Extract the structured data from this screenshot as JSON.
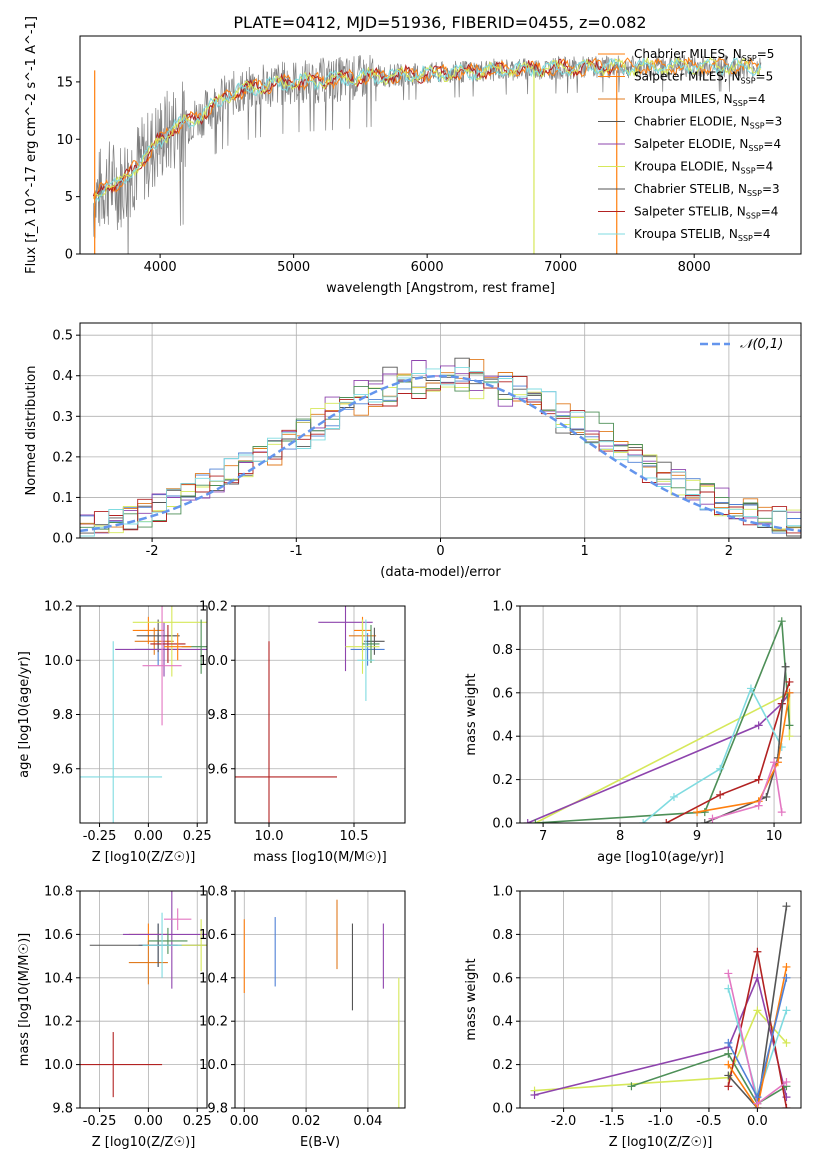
{
  "figure_title": "PLATE=0412, MJD=51936, FIBERID=0455, z=0.082",
  "colors": {
    "data": "#7f7f7f",
    "gaussian": "#6495ed",
    "grid": "#b0b0b0",
    "models": [
      "#ff7f0e",
      "#4f81d6",
      "#e07b1f",
      "#555555",
      "#8e44ad",
      "#d6e85a",
      "#4d8f57",
      "#b22222",
      "#7fdbe0",
      "#e377c2"
    ]
  },
  "chart_data": [
    {
      "type": "line",
      "title": "PLATE=0412, MJD=51936, FIBERID=0455, z=0.082",
      "xlabel": "wavelength [Angstrom, rest frame]",
      "ylabel": "Flux [f_λ 10^-17 erg cm^-2 s^-1 A^-1]",
      "xlim": [
        3400,
        8800
      ],
      "ylim": [
        0,
        19
      ],
      "xticks": [
        4000,
        5000,
        6000,
        7000,
        8000
      ],
      "yticks": [
        0,
        5,
        10,
        15
      ],
      "legend_position": "right",
      "legend": [
        {
          "name": "Chabrier MILES, N",
          "sub": "SSP",
          "suffix": "=5"
        },
        {
          "name": "Salpeter MILES, N",
          "sub": "SSP",
          "suffix": "=5"
        },
        {
          "name": "Kroupa MILES, N",
          "sub": "SSP",
          "suffix": "=4"
        },
        {
          "name": "Chabrier ELODIE, N",
          "sub": "SSP",
          "suffix": "=3"
        },
        {
          "name": "Salpeter ELODIE, N",
          "sub": "SSP",
          "suffix": "=4"
        },
        {
          "name": "Kroupa ELODIE, N",
          "sub": "SSP",
          "suffix": "=4"
        },
        {
          "name": "Chabrier STELIB, N",
          "sub": "SSP",
          "suffix": "=3"
        },
        {
          "name": "Salpeter STELIB, N",
          "sub": "SSP",
          "suffix": "=4"
        },
        {
          "name": "Kroupa STELIB, N",
          "sub": "SSP",
          "suffix": "=4"
        }
      ],
      "continuum": {
        "x": [
          3500,
          3550,
          3600,
          3700,
          3800,
          3900,
          4000,
          4100,
          4200,
          4300,
          4400,
          4500,
          4700,
          5000,
          5300,
          5600,
          6000,
          6300,
          6600,
          7000,
          7300,
          7600,
          8000,
          8500
        ],
        "y": [
          4.5,
          5.5,
          6.2,
          6.0,
          7.5,
          8.5,
          10.0,
          11.0,
          11.5,
          12.0,
          13.0,
          13.8,
          14.5,
          15.0,
          15.2,
          15.5,
          15.7,
          15.9,
          16.1,
          16.2,
          16.3,
          16.3,
          16.4,
          16.3
        ]
      }
    },
    {
      "type": "line",
      "title": "",
      "xlabel": "(data-model)/error",
      "ylabel": "Normed distribution",
      "xlim": [
        -2.5,
        2.5
      ],
      "ylim": [
        0,
        0.53
      ],
      "xticks": [
        -2,
        -1,
        0,
        1,
        2
      ],
      "yticks": [
        0.0,
        0.1,
        0.2,
        0.3,
        0.4,
        0.5
      ],
      "legend_label": "𝒩(0,1)",
      "legend_position": "top-right",
      "gaussian_peak": 0.399
    },
    {
      "type": "scatter",
      "xlabel_main": "Z [log",
      "xlabel_sub": "10",
      "xlabel_rest": "(Z/Z",
      "xlabel_end": ")]",
      "ylabel": "age  [log10(age/yr)]",
      "xlim": [
        -0.35,
        0.3
      ],
      "ylim": [
        9.4,
        10.2
      ],
      "xticks": [
        -0.25,
        0.0,
        0.25
      ],
      "yticks": [
        9.6,
        9.8,
        10.0,
        10.2
      ],
      "points": [
        {
          "x": 0.0,
          "y": 10.11,
          "xerr": 0.08,
          "yerr": 0.05
        },
        {
          "x": 0.05,
          "y": 10.04,
          "xerr": 0.12,
          "yerr": 0.06
        },
        {
          "x": 0.03,
          "y": 10.07,
          "xerr": 0.1,
          "yerr": 0.05
        },
        {
          "x": 0.05,
          "y": 10.09,
          "xerr": 0.11,
          "yerr": 0.06
        },
        {
          "x": 0.08,
          "y": 10.04,
          "xerr": 0.25,
          "yerr": 0.1
        },
        {
          "x": 0.12,
          "y": 10.14,
          "xerr": 0.2,
          "yerr": 0.2
        },
        {
          "x": 0.27,
          "y": 10.05,
          "xerr": 0.1,
          "yerr": 0.1
        },
        {
          "x": 0.1,
          "y": 10.06,
          "xerr": 0.09,
          "yerr": 0.07
        },
        {
          "x": -0.18,
          "y": 9.57,
          "xerr": 0.25,
          "yerr": 0.5
        },
        {
          "x": 0.07,
          "y": 9.98,
          "xerr": 0.1,
          "yerr": 0.22
        },
        {
          "x": 0.15,
          "y": 10.05,
          "xerr": 0.07,
          "yerr": 0.05
        }
      ]
    },
    {
      "type": "scatter",
      "xlabel": "mass [log10(M/M☉)]",
      "xlim": [
        9.8,
        10.8
      ],
      "ylim": [
        9.4,
        10.2
      ],
      "xticks": [
        10.0,
        10.5
      ],
      "yticks": [
        9.6,
        9.8,
        10.0,
        10.2
      ],
      "points": [
        {
          "x": 10.55,
          "y": 10.11,
          "xerr": 0.05,
          "yerr": 0.05
        },
        {
          "x": 10.58,
          "y": 10.04,
          "xerr": 0.1,
          "yerr": 0.06
        },
        {
          "x": 10.55,
          "y": 10.09,
          "xerr": 0.08,
          "yerr": 0.06
        },
        {
          "x": 10.62,
          "y": 10.07,
          "xerr": 0.06,
          "yerr": 0.05
        },
        {
          "x": 10.45,
          "y": 10.14,
          "xerr": 0.16,
          "yerr": 0.18
        },
        {
          "x": 10.55,
          "y": 10.05,
          "xerr": 0.1,
          "yerr": 0.1
        },
        {
          "x": 10.6,
          "y": 10.06,
          "xerr": 0.05,
          "yerr": 0.07
        },
        {
          "x": 10.0,
          "y": 9.57,
          "xerr": 0.4,
          "yerr": 0.5
        },
        {
          "x": 10.57,
          "y": 10.0,
          "xerr": 0.05,
          "yerr": 0.15
        }
      ]
    },
    {
      "type": "line",
      "xlabel": "age  [log10(age/yr)]",
      "ylabel": "mass weight",
      "xlim": [
        6.7,
        10.35
      ],
      "ylim": [
        0,
        1.0
      ],
      "xticks": [
        7,
        8,
        9,
        10
      ],
      "yticks": [
        0.0,
        0.2,
        0.4,
        0.6,
        0.8,
        1.0
      ],
      "series": [
        {
          "x": [
            6.9,
            10.2,
            10.2
          ],
          "y": [
            0.0,
            0.6,
            0.4
          ]
        },
        {
          "x": [
            6.8,
            9.8,
            10.1,
            10.2
          ],
          "y": [
            0.0,
            0.45,
            0.55,
            0.6
          ]
        },
        {
          "x": [
            6.9,
            9.1,
            10.1,
            10.2
          ],
          "y": [
            0.0,
            0.05,
            0.93,
            0.45
          ]
        },
        {
          "x": [
            8.6,
            9.3,
            9.8,
            10.1,
            10.2
          ],
          "y": [
            0.0,
            0.13,
            0.2,
            0.55,
            0.65
          ]
        },
        {
          "x": [
            8.3,
            8.7,
            9.3,
            9.7,
            10.1
          ],
          "y": [
            0.0,
            0.12,
            0.25,
            0.62,
            0.35
          ]
        },
        {
          "x": [
            9.1,
            9.9,
            10.05,
            10.15
          ],
          "y": [
            0.0,
            0.12,
            0.3,
            0.72
          ]
        },
        {
          "x": [
            9.0,
            9.8,
            10.05,
            10.2
          ],
          "y": [
            0.05,
            0.1,
            0.28,
            0.6
          ]
        },
        {
          "x": [
            9.2,
            9.8,
            10.0,
            10.1
          ],
          "y": [
            0.02,
            0.08,
            0.28,
            0.05
          ]
        }
      ]
    },
    {
      "type": "scatter",
      "xlabel": "Z [log10(Z/Z☉)]",
      "ylabel": "mass [log10(M/M☉)]",
      "xlim": [
        -0.35,
        0.3
      ],
      "ylim": [
        9.8,
        10.8
      ],
      "xticks": [
        -0.25,
        0.0,
        0.25
      ],
      "yticks": [
        9.8,
        10.0,
        10.2,
        10.4,
        10.6,
        10.8
      ],
      "points": [
        {
          "x": 0.0,
          "y": 10.6,
          "xerr": 0.1,
          "yerr": 0.05
        },
        {
          "x": 0.05,
          "y": 10.55,
          "xerr": 0.1,
          "yerr": 0.1
        },
        {
          "x": 0.0,
          "y": 10.47,
          "xerr": 0.1,
          "yerr": 0.1
        },
        {
          "x": 0.05,
          "y": 10.55,
          "xerr": 0.35,
          "yerr": 0.1
        },
        {
          "x": 0.12,
          "y": 10.6,
          "xerr": 0.25,
          "yerr": 0.25
        },
        {
          "x": 0.27,
          "y": 10.55,
          "xerr": 0.1,
          "yerr": 0.12
        },
        {
          "x": 0.1,
          "y": 10.57,
          "xerr": 0.1,
          "yerr": 0.06
        },
        {
          "x": -0.18,
          "y": 10.0,
          "xerr": 0.25,
          "yerr": 0.15
        },
        {
          "x": 0.07,
          "y": 10.55,
          "xerr": 0.1,
          "yerr": 0.15
        },
        {
          "x": 0.15,
          "y": 10.67,
          "xerr": 0.07,
          "yerr": 0.05
        }
      ]
    },
    {
      "type": "scatter",
      "xlabel": "E(B-V)",
      "xlim": [
        -0.003,
        0.052
      ],
      "ylim": [
        9.8,
        10.8
      ],
      "xticks": [
        0.0,
        0.02,
        0.04
      ],
      "yticks": [
        9.8,
        10.0,
        10.2,
        10.4,
        10.6,
        10.8
      ],
      "points": [
        {
          "x": 0.0,
          "y": 10.5,
          "yerr": 0.17
        },
        {
          "x": 0.01,
          "y": 10.52,
          "yerr": 0.16
        },
        {
          "x": 0.03,
          "y": 10.6,
          "yerr": 0.16
        },
        {
          "x": 0.035,
          "y": 10.45,
          "yerr": 0.2
        },
        {
          "x": 0.045,
          "y": 10.5,
          "yerr": 0.15
        },
        {
          "x": 0.05,
          "y": 10.1,
          "yerr": 0.3
        }
      ]
    },
    {
      "type": "line",
      "xlabel": "Z [log10(Z/Z☉)]",
      "ylabel": "mass weight",
      "xlim": [
        -2.45,
        0.45
      ],
      "ylim": [
        0,
        1.0
      ],
      "xticks": [
        -2.0,
        -1.5,
        -1.0,
        -0.5,
        0.0
      ],
      "yticks": [
        0.0,
        0.2,
        0.4,
        0.6,
        0.8,
        1.0
      ],
      "series": [
        {
          "x": [
            -2.3,
            -0.3,
            0.0,
            0.3
          ],
          "y": [
            0.08,
            0.14,
            0.45,
            0.3
          ]
        },
        {
          "x": [
            -2.3,
            -0.3,
            0.0,
            0.3
          ],
          "y": [
            0.06,
            0.28,
            0.6,
            0.05
          ]
        },
        {
          "x": [
            -1.3,
            -0.3,
            0.0,
            0.3
          ],
          "y": [
            0.1,
            0.25,
            0.02,
            0.1
          ]
        },
        {
          "x": [
            -0.3,
            0.0,
            0.3
          ],
          "y": [
            0.1,
            0.72,
            0.0
          ]
        },
        {
          "x": [
            -0.3,
            0.0,
            0.3
          ],
          "y": [
            0.55,
            0.05,
            0.45
          ]
        },
        {
          "x": [
            -0.3,
            0.0,
            0.3
          ],
          "y": [
            0.15,
            0.0,
            0.93
          ]
        },
        {
          "x": [
            -0.3,
            0.0,
            0.3
          ],
          "y": [
            0.2,
            0.0,
            0.65
          ]
        },
        {
          "x": [
            -0.3,
            0.0,
            0.3
          ],
          "y": [
            0.62,
            0.02,
            0.12
          ]
        },
        {
          "x": [
            -0.3,
            0.0,
            0.3
          ],
          "y": [
            0.3,
            0.05,
            0.6
          ]
        }
      ]
    }
  ]
}
